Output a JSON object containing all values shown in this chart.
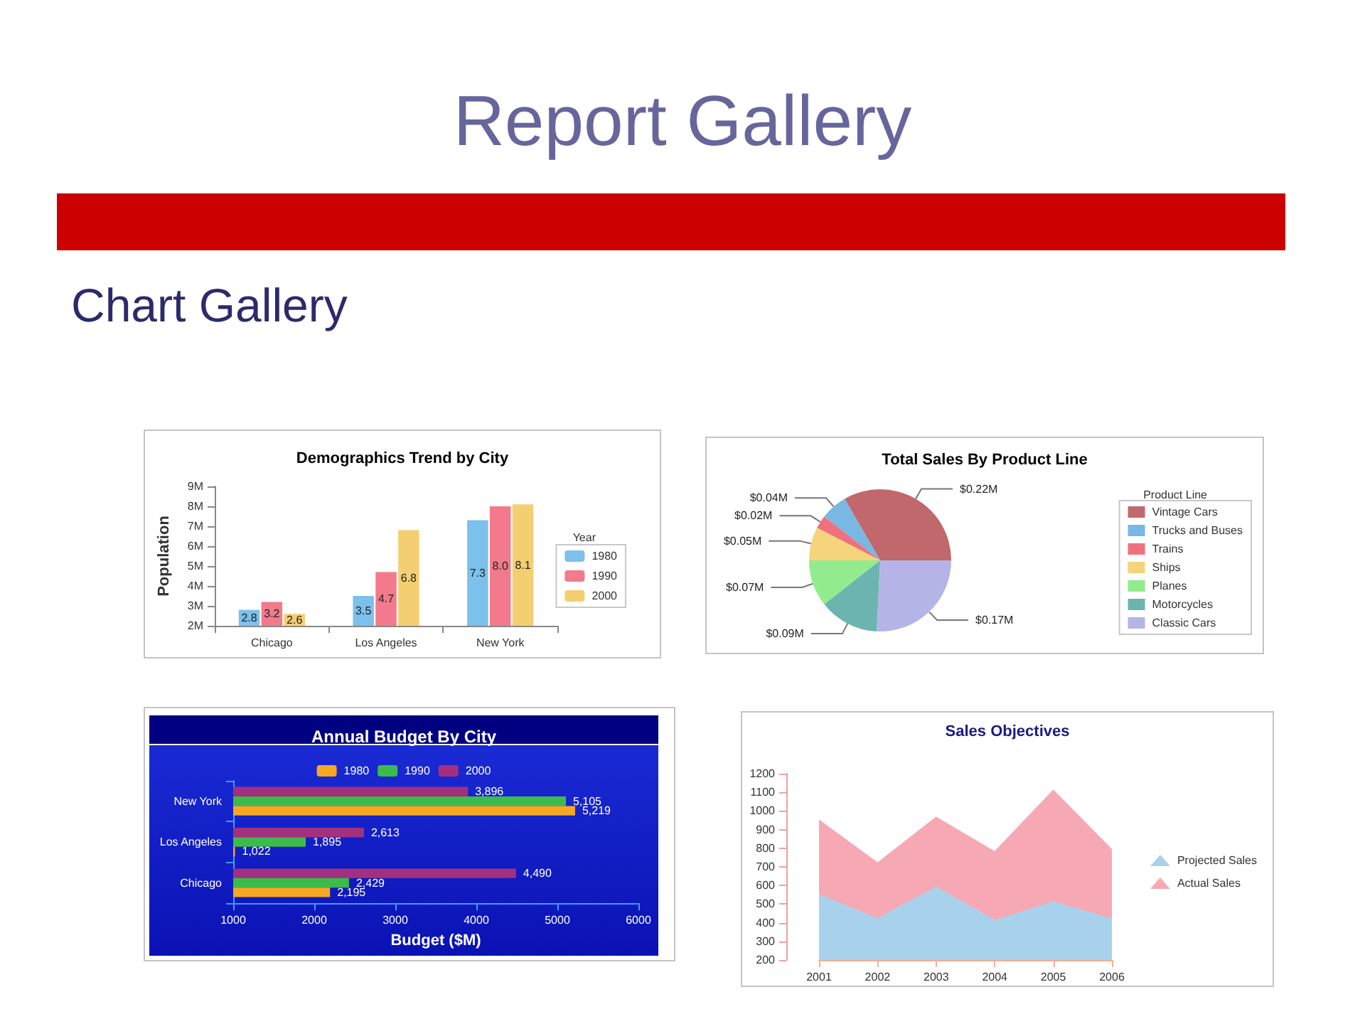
{
  "chart_data": [
    {
      "type": "other",
      "title": "Report Gallery",
      "subtitle": "Chart Gallery"
    },
    {
      "type": "bar",
      "title": "Demographics Trend by City",
      "ylabel": "Population",
      "legend_title": "Year",
      "legend": "right",
      "categories": [
        "Chicago",
        "Los Angeles",
        "New York"
      ],
      "series": [
        {
          "name": "1980",
          "color": "#7cc0ec",
          "values": [
            2.8,
            3.5,
            7.3
          ],
          "value_labels": [
            "2.8",
            "3.5",
            "7.3"
          ]
        },
        {
          "name": "1990",
          "color": "#f27a8c",
          "values": [
            3.2,
            4.7,
            8.0
          ],
          "value_labels": [
            "3.2",
            "4.7",
            "8.0"
          ]
        },
        {
          "name": "2000",
          "color": "#f4cf72",
          "values": [
            2.6,
            6.8,
            8.1
          ],
          "value_labels": [
            "2.6",
            "6.8",
            "8.1"
          ]
        }
      ],
      "ylim": [
        2,
        9
      ],
      "yticks": [
        {
          "value": 2,
          "label": "2M"
        },
        {
          "value": 3,
          "label": "3M"
        },
        {
          "value": 4,
          "label": "4M"
        },
        {
          "value": 5,
          "label": "5M"
        },
        {
          "value": 6,
          "label": "6M"
        },
        {
          "value": 7,
          "label": "7M"
        },
        {
          "value": 8,
          "label": "8M"
        },
        {
          "value": 9,
          "label": "9M"
        }
      ]
    },
    {
      "type": "pie",
      "title": "Total Sales By Product Line",
      "legend_title": "Product Line",
      "legend": "right",
      "categories": [
        "Vintage Cars",
        "Trucks and Buses",
        "Trains",
        "Ships",
        "Planes",
        "Motorcycles",
        "Classic Cars"
      ],
      "values": [
        0.22,
        0.04,
        0.02,
        0.05,
        0.07,
        0.09,
        0.17
      ],
      "value_labels": [
        "$0.22M",
        "$0.04M",
        "$0.02M",
        "$0.05M",
        "$0.07M",
        "$0.09M",
        "$0.17M"
      ],
      "colors": [
        "#c0686c",
        "#78b8e2",
        "#f0717e",
        "#f6d47c",
        "#92ec8e",
        "#6cb4ae",
        "#b4b4e6"
      ]
    },
    {
      "type": "bar",
      "orientation": "horizontal",
      "title": "Annual Budget By City",
      "xlabel": "Budget ($M)",
      "legend": "top",
      "categories": [
        "New York",
        "Los Angeles",
        "Chicago"
      ],
      "series": [
        {
          "name": "1980",
          "color": "#f7a823",
          "values": [
            5219,
            1022,
            2195
          ],
          "value_labels": [
            "5,219",
            "1,022",
            "2,195"
          ]
        },
        {
          "name": "1990",
          "color": "#3dbb4a",
          "values": [
            5105,
            1895,
            2429
          ],
          "value_labels": [
            "5,105",
            "1,895",
            "2,429"
          ]
        },
        {
          "name": "2000",
          "color": "#a3307f",
          "values": [
            3896,
            2613,
            4490
          ],
          "value_labels": [
            "3,896",
            "2,613",
            "4,490"
          ]
        }
      ],
      "xlim": [
        1000,
        6000
      ],
      "xticks": [
        1000,
        2000,
        3000,
        4000,
        5000,
        6000
      ]
    },
    {
      "type": "area",
      "title": "Sales Objectives",
      "legend": "right",
      "categories": [
        "2001",
        "2002",
        "2003",
        "2004",
        "2005",
        "2006"
      ],
      "series": [
        {
          "name": "Projected Sales",
          "color": "#a8d2ec",
          "values": [
            550,
            420,
            590,
            410,
            510,
            420
          ]
        },
        {
          "name": "Actual Sales",
          "color": "#f6a9b5",
          "values": [
            950,
            720,
            965,
            780,
            1110,
            790
          ]
        }
      ],
      "ylim": [
        200,
        1200
      ],
      "yticks": [
        200,
        300,
        400,
        500,
        600,
        700,
        800,
        900,
        1000,
        1100,
        1200
      ]
    }
  ]
}
